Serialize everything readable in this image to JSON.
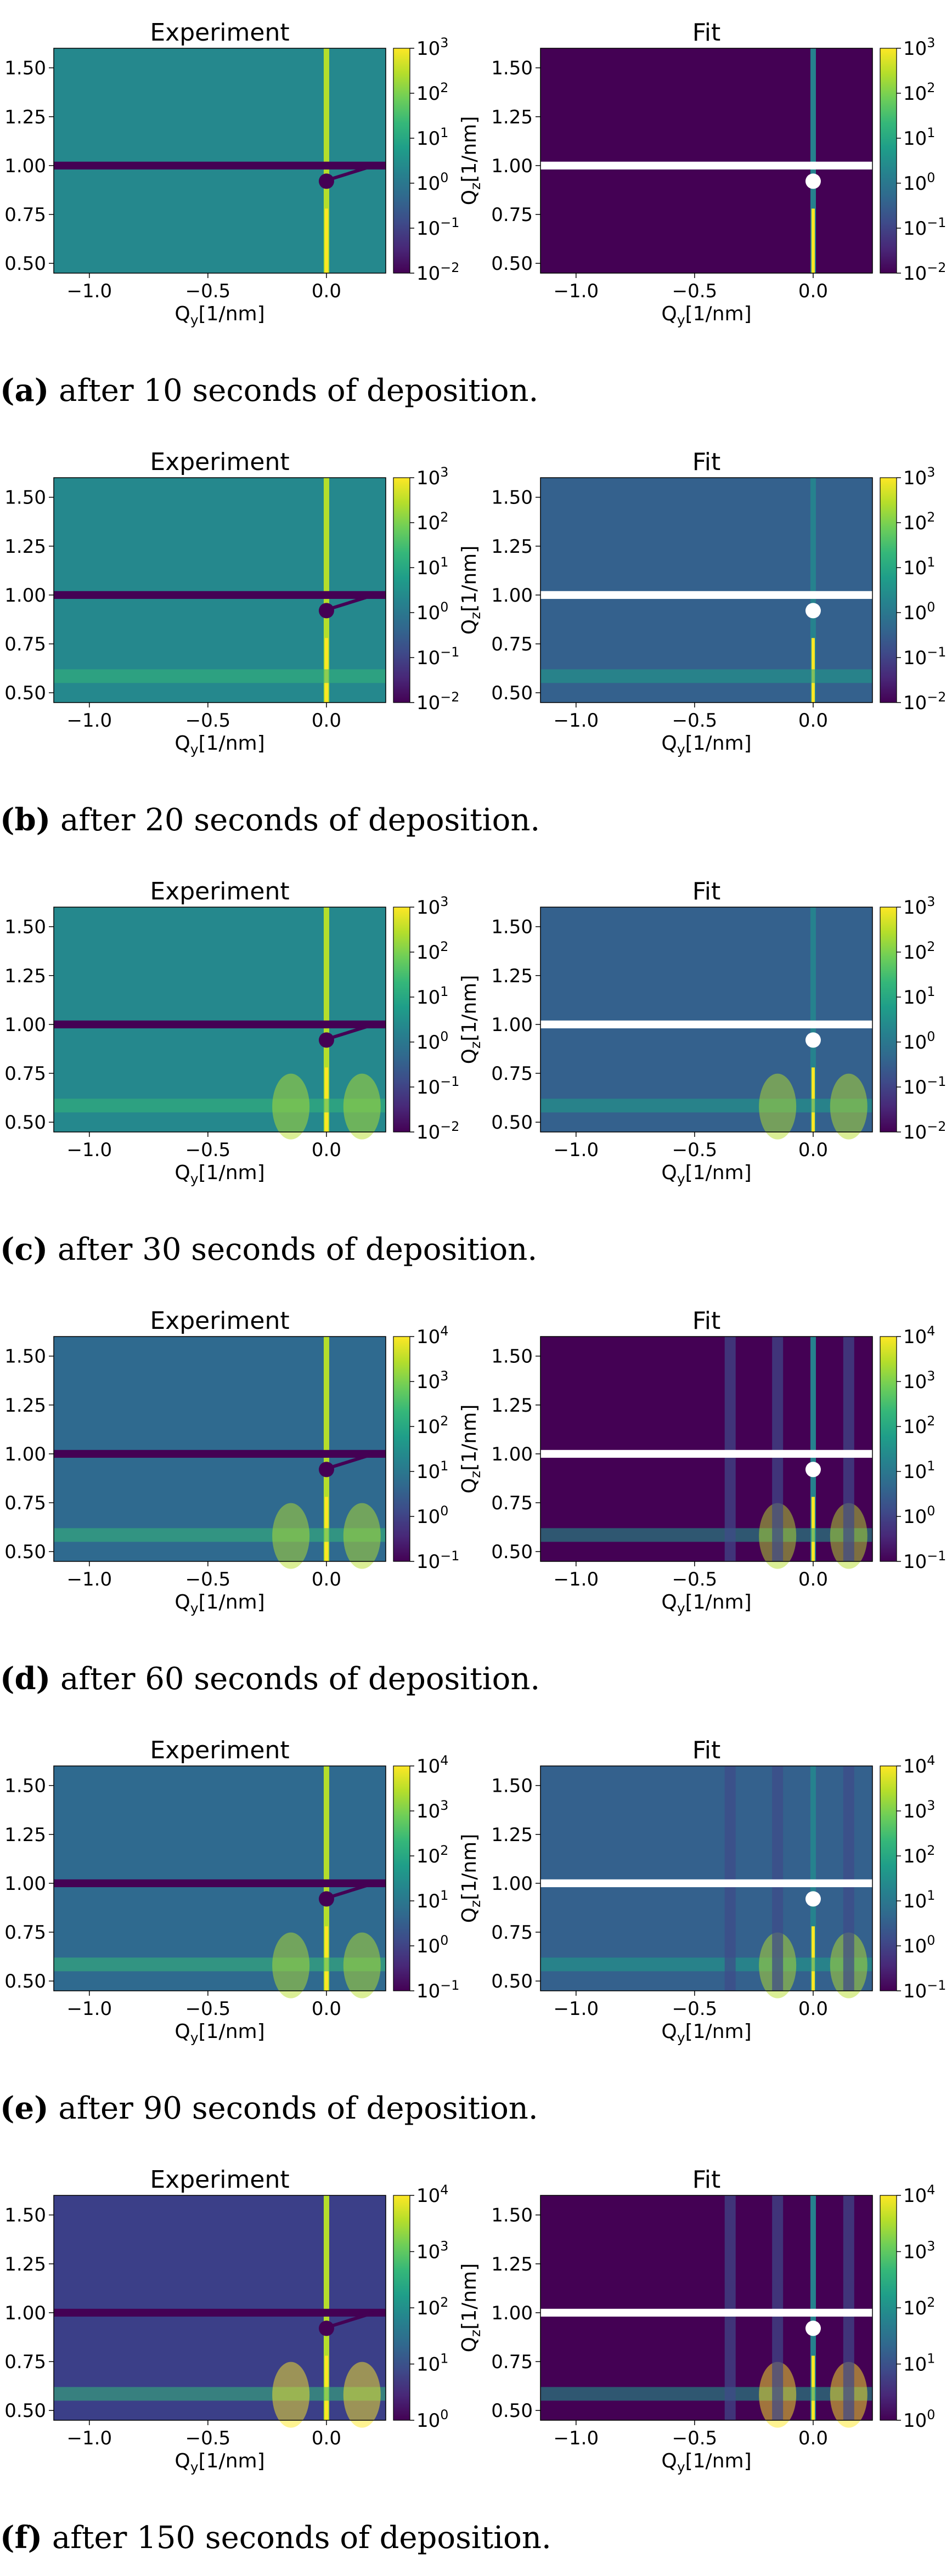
{
  "figure": {
    "subfigures": [
      {
        "label": "(a)",
        "caption": "after 10 seconds of deposition.",
        "chart_data": [
          {
            "type": "heatmap",
            "title": "Experiment",
            "xlabel": "Q_y[1/nm]",
            "ylabel": "Q_z[1/nm]",
            "xlim": [
              -1.15,
              0.25
            ],
            "ylim": [
              0.45,
              1.6
            ],
            "xticks": [
              -1.0,
              -0.5,
              0.0
            ],
            "yticks": [
              0.5,
              0.75,
              1.0,
              1.25,
              1.5
            ],
            "color_scale": "log",
            "colormap": "viridis",
            "colorbar_range": [
              0.01,
              1000
            ],
            "colorbar_ticks": [
              "10^-2",
              "10^-1",
              "10^0",
              "10^1",
              "10^2",
              "10^3"
            ],
            "mask_band": [
              0.98,
              1.02
            ],
            "beamstop": [
              0.0,
              0.92
            ]
          },
          {
            "type": "heatmap",
            "title": "Fit",
            "xlabel": "Q_y[1/nm]",
            "ylabel": "Q_z[1/nm]",
            "xlim": [
              -1.15,
              0.25
            ],
            "ylim": [
              0.45,
              1.6
            ],
            "xticks": [
              -1.0,
              -0.5,
              0.0
            ],
            "yticks": [
              0.5,
              0.75,
              1.0,
              1.25,
              1.5
            ],
            "color_scale": "log",
            "colormap": "viridis",
            "colorbar_range": [
              0.01,
              1000
            ],
            "colorbar_ticks": [
              "10^-2",
              "10^-1",
              "10^0",
              "10^1",
              "10^2",
              "10^3"
            ],
            "mask_band": [
              0.98,
              1.02
            ],
            "beamstop": [
              0.0,
              0.92
            ]
          }
        ]
      },
      {
        "label": "(b)",
        "caption": "after 20 seconds of deposition.",
        "chart_data": [
          {
            "type": "heatmap",
            "title": "Experiment",
            "xlabel": "Q_y[1/nm]",
            "ylabel": "Q_z[1/nm]",
            "xlim": [
              -1.15,
              0.25
            ],
            "ylim": [
              0.45,
              1.6
            ],
            "xticks": [
              -1.0,
              -0.5,
              0.0
            ],
            "yticks": [
              0.5,
              0.75,
              1.0,
              1.25,
              1.5
            ],
            "color_scale": "log",
            "colormap": "viridis",
            "colorbar_range": [
              0.01,
              1000
            ],
            "colorbar_ticks": [
              "10^-2",
              "10^-1",
              "10^0",
              "10^1",
              "10^2",
              "10^3"
            ],
            "mask_band": [
              0.98,
              1.02
            ],
            "beamstop": [
              0.0,
              0.92
            ]
          },
          {
            "type": "heatmap",
            "title": "Fit",
            "xlabel": "Q_y[1/nm]",
            "ylabel": "Q_z[1/nm]",
            "xlim": [
              -1.15,
              0.25
            ],
            "ylim": [
              0.45,
              1.6
            ],
            "xticks": [
              -1.0,
              -0.5,
              0.0
            ],
            "yticks": [
              0.5,
              0.75,
              1.0,
              1.25,
              1.5
            ],
            "color_scale": "log",
            "colormap": "viridis",
            "colorbar_range": [
              0.01,
              1000
            ],
            "colorbar_ticks": [
              "10^-2",
              "10^-1",
              "10^0",
              "10^1",
              "10^2",
              "10^3"
            ],
            "mask_band": [
              0.98,
              1.02
            ],
            "beamstop": [
              0.0,
              0.92
            ]
          }
        ]
      },
      {
        "label": "(c)",
        "caption": "after 30 seconds of deposition.",
        "chart_data": [
          {
            "type": "heatmap",
            "title": "Experiment",
            "xlabel": "Q_y[1/nm]",
            "ylabel": "Q_z[1/nm]",
            "xlim": [
              -1.15,
              0.25
            ],
            "ylim": [
              0.45,
              1.6
            ],
            "xticks": [
              -1.0,
              -0.5,
              0.0
            ],
            "yticks": [
              0.5,
              0.75,
              1.0,
              1.25,
              1.5
            ],
            "color_scale": "log",
            "colormap": "viridis",
            "colorbar_range": [
              0.01,
              1000
            ],
            "colorbar_ticks": [
              "10^-2",
              "10^-1",
              "10^0",
              "10^1",
              "10^2",
              "10^3"
            ],
            "mask_band": [
              0.98,
              1.02
            ],
            "beamstop": [
              0.0,
              0.92
            ]
          },
          {
            "type": "heatmap",
            "title": "Fit",
            "xlabel": "Q_y[1/nm]",
            "ylabel": "Q_z[1/nm]",
            "xlim": [
              -1.15,
              0.25
            ],
            "ylim": [
              0.45,
              1.6
            ],
            "xticks": [
              -1.0,
              -0.5,
              0.0
            ],
            "yticks": [
              0.5,
              0.75,
              1.0,
              1.25,
              1.5
            ],
            "color_scale": "log",
            "colormap": "viridis",
            "colorbar_range": [
              0.01,
              1000
            ],
            "colorbar_ticks": [
              "10^-2",
              "10^-1",
              "10^0",
              "10^1",
              "10^2",
              "10^3"
            ],
            "mask_band": [
              0.98,
              1.02
            ],
            "beamstop": [
              0.0,
              0.92
            ]
          }
        ]
      },
      {
        "label": "(d)",
        "caption": "after 60 seconds of deposition.",
        "chart_data": [
          {
            "type": "heatmap",
            "title": "Experiment",
            "xlabel": "Q_y[1/nm]",
            "ylabel": "Q_z[1/nm]",
            "xlim": [
              -1.15,
              0.25
            ],
            "ylim": [
              0.45,
              1.6
            ],
            "xticks": [
              -1.0,
              -0.5,
              0.0
            ],
            "yticks": [
              0.5,
              0.75,
              1.0,
              1.25,
              1.5
            ],
            "color_scale": "log",
            "colormap": "viridis",
            "colorbar_range": [
              0.1,
              10000
            ],
            "colorbar_ticks": [
              "10^-1",
              "10^0",
              "10^1",
              "10^2",
              "10^3",
              "10^4"
            ],
            "mask_band": [
              0.98,
              1.02
            ],
            "beamstop": [
              0.0,
              0.92
            ]
          },
          {
            "type": "heatmap",
            "title": "Fit",
            "xlabel": "Q_y[1/nm]",
            "ylabel": "Q_z[1/nm]",
            "xlim": [
              -1.15,
              0.25
            ],
            "ylim": [
              0.45,
              1.6
            ],
            "xticks": [
              -1.0,
              -0.5,
              0.0
            ],
            "yticks": [
              0.5,
              0.75,
              1.0,
              1.25,
              1.5
            ],
            "color_scale": "log",
            "colormap": "viridis",
            "colorbar_range": [
              0.1,
              10000
            ],
            "colorbar_ticks": [
              "10^-1",
              "10^0",
              "10^1",
              "10^2",
              "10^3",
              "10^4"
            ],
            "mask_band": [
              0.98,
              1.02
            ],
            "beamstop": [
              0.0,
              0.92
            ]
          }
        ]
      },
      {
        "label": "(e)",
        "caption": "after 90 seconds of deposition.",
        "chart_data": [
          {
            "type": "heatmap",
            "title": "Experiment",
            "xlabel": "Q_y[1/nm]",
            "ylabel": "Q_z[1/nm]",
            "xlim": [
              -1.15,
              0.25
            ],
            "ylim": [
              0.45,
              1.6
            ],
            "xticks": [
              -1.0,
              -0.5,
              0.0
            ],
            "yticks": [
              0.5,
              0.75,
              1.0,
              1.25,
              1.5
            ],
            "color_scale": "log",
            "colormap": "viridis",
            "colorbar_range": [
              0.1,
              10000
            ],
            "colorbar_ticks": [
              "10^-1",
              "10^0",
              "10^1",
              "10^2",
              "10^3",
              "10^4"
            ],
            "mask_band": [
              0.98,
              1.02
            ],
            "beamstop": [
              0.0,
              0.92
            ]
          },
          {
            "type": "heatmap",
            "title": "Fit",
            "xlabel": "Q_y[1/nm]",
            "ylabel": "Q_z[1/nm]",
            "xlim": [
              -1.15,
              0.25
            ],
            "ylim": [
              0.45,
              1.6
            ],
            "xticks": [
              -1.0,
              -0.5,
              0.0
            ],
            "yticks": [
              0.5,
              0.75,
              1.0,
              1.25,
              1.5
            ],
            "color_scale": "log",
            "colormap": "viridis",
            "colorbar_range": [
              0.1,
              10000
            ],
            "colorbar_ticks": [
              "10^-1",
              "10^0",
              "10^1",
              "10^2",
              "10^3",
              "10^4"
            ],
            "mask_band": [
              0.98,
              1.02
            ],
            "beamstop": [
              0.0,
              0.92
            ]
          }
        ]
      },
      {
        "label": "(f)",
        "caption": "after 150 seconds of deposition.",
        "chart_data": [
          {
            "type": "heatmap",
            "title": "Experiment",
            "xlabel": "Q_y[1/nm]",
            "ylabel": "Q_z[1/nm]",
            "xlim": [
              -1.15,
              0.25
            ],
            "ylim": [
              0.45,
              1.6
            ],
            "xticks": [
              -1.0,
              -0.5,
              0.0
            ],
            "yticks": [
              0.5,
              0.75,
              1.0,
              1.25,
              1.5
            ],
            "color_scale": "log",
            "colormap": "viridis",
            "colorbar_range": [
              1,
              10000
            ],
            "colorbar_ticks": [
              "10^0",
              "10^1",
              "10^2",
              "10^3",
              "10^4"
            ],
            "mask_band": [
              0.98,
              1.02
            ],
            "beamstop": [
              0.0,
              0.92
            ]
          },
          {
            "type": "heatmap",
            "title": "Fit",
            "xlabel": "Q_y[1/nm]",
            "ylabel": "Q_z[1/nm]",
            "xlim": [
              -1.15,
              0.25
            ],
            "ylim": [
              0.45,
              1.6
            ],
            "xticks": [
              -1.0,
              -0.5,
              0.0
            ],
            "yticks": [
              0.5,
              0.75,
              1.0,
              1.25,
              1.5
            ],
            "color_scale": "log",
            "colormap": "viridis",
            "colorbar_range": [
              1,
              10000
            ],
            "colorbar_ticks": [
              "10^0",
              "10^1",
              "10^2",
              "10^3",
              "10^4"
            ],
            "mask_band": [
              0.98,
              1.02
            ],
            "beamstop": [
              0.0,
              0.92
            ]
          }
        ]
      }
    ]
  }
}
